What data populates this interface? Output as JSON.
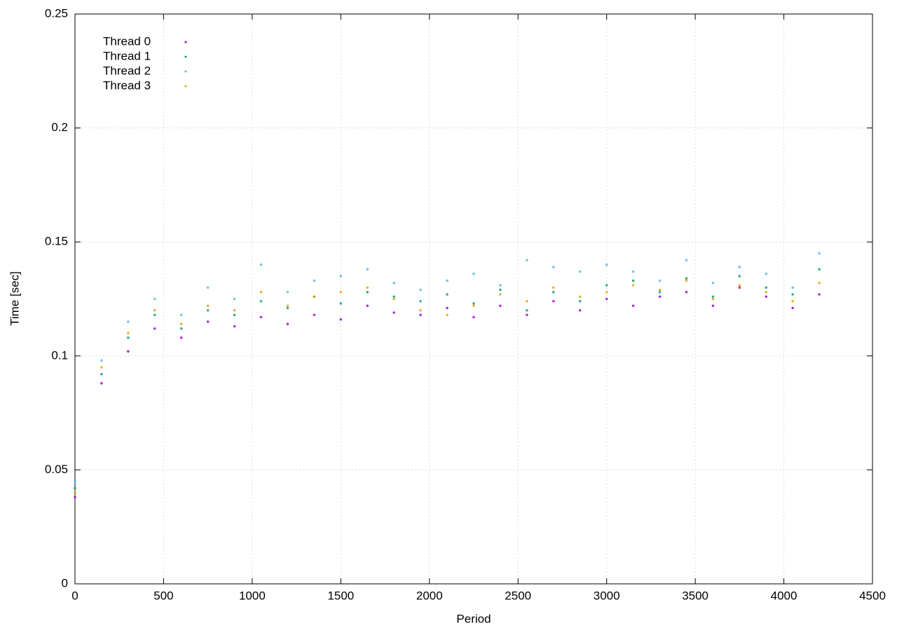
{
  "chart_data": {
    "type": "scatter",
    "xlabel": "Period",
    "ylabel": "Time [sec]",
    "x": [
      0,
      150,
      300,
      450,
      600,
      750,
      900,
      1050,
      1200,
      1350,
      1500,
      1650,
      1800,
      1950,
      2100,
      2250,
      2400,
      2550,
      2700,
      2850,
      3000,
      3150,
      3300,
      3450,
      3600,
      3750,
      3900,
      4050,
      4200
    ],
    "series": [
      {
        "name": "Thread 0",
        "color": "#9400d3",
        "values": [
          0.038,
          0.088,
          0.102,
          0.112,
          0.108,
          0.115,
          0.113,
          0.117,
          0.114,
          0.118,
          0.116,
          0.122,
          0.119,
          0.118,
          0.121,
          0.117,
          0.122,
          0.118,
          0.124,
          0.12,
          0.125,
          0.122,
          0.126,
          0.128,
          0.122,
          0.13,
          0.126,
          0.121,
          0.127
        ]
      },
      {
        "name": "Thread 1",
        "color": "#009e73",
        "values": [
          0.042,
          0.092,
          0.108,
          0.118,
          0.112,
          0.12,
          0.118,
          0.124,
          0.121,
          0.126,
          0.123,
          0.128,
          0.126,
          0.124,
          0.127,
          0.123,
          0.129,
          0.12,
          0.128,
          0.124,
          0.131,
          0.133,
          0.128,
          0.134,
          0.126,
          0.135,
          0.13,
          0.127,
          0.138
        ]
      },
      {
        "name": "Thread 2",
        "color": "#56b4e9",
        "values": [
          0.045,
          0.098,
          0.115,
          0.125,
          0.118,
          0.13,
          0.125,
          0.14,
          0.128,
          0.133,
          0.135,
          0.138,
          0.132,
          0.129,
          0.133,
          0.136,
          0.131,
          0.142,
          0.139,
          0.137,
          0.14,
          0.137,
          0.133,
          0.142,
          0.132,
          0.139,
          0.136,
          0.13,
          0.145
        ]
      },
      {
        "name": "Thread 3",
        "color": "#e69f00",
        "values": [
          0.04,
          0.095,
          0.11,
          0.12,
          0.114,
          0.122,
          0.12,
          0.128,
          0.122,
          0.126,
          0.128,
          0.13,
          0.125,
          0.12,
          0.118,
          0.122,
          0.127,
          0.124,
          0.13,
          0.126,
          0.128,
          0.131,
          0.129,
          0.133,
          0.125,
          0.131,
          0.128,
          0.124,
          0.132
        ]
      }
    ],
    "xlim": [
      0,
      4500
    ],
    "xticks": [
      0,
      500,
      1000,
      1500,
      2000,
      2500,
      3000,
      3500,
      4000,
      4500
    ],
    "ylim": [
      0,
      0.25
    ],
    "yticks": [
      0,
      0.05,
      0.1,
      0.15,
      0.2,
      0.25
    ],
    "grid": true,
    "legend": "top-left"
  }
}
